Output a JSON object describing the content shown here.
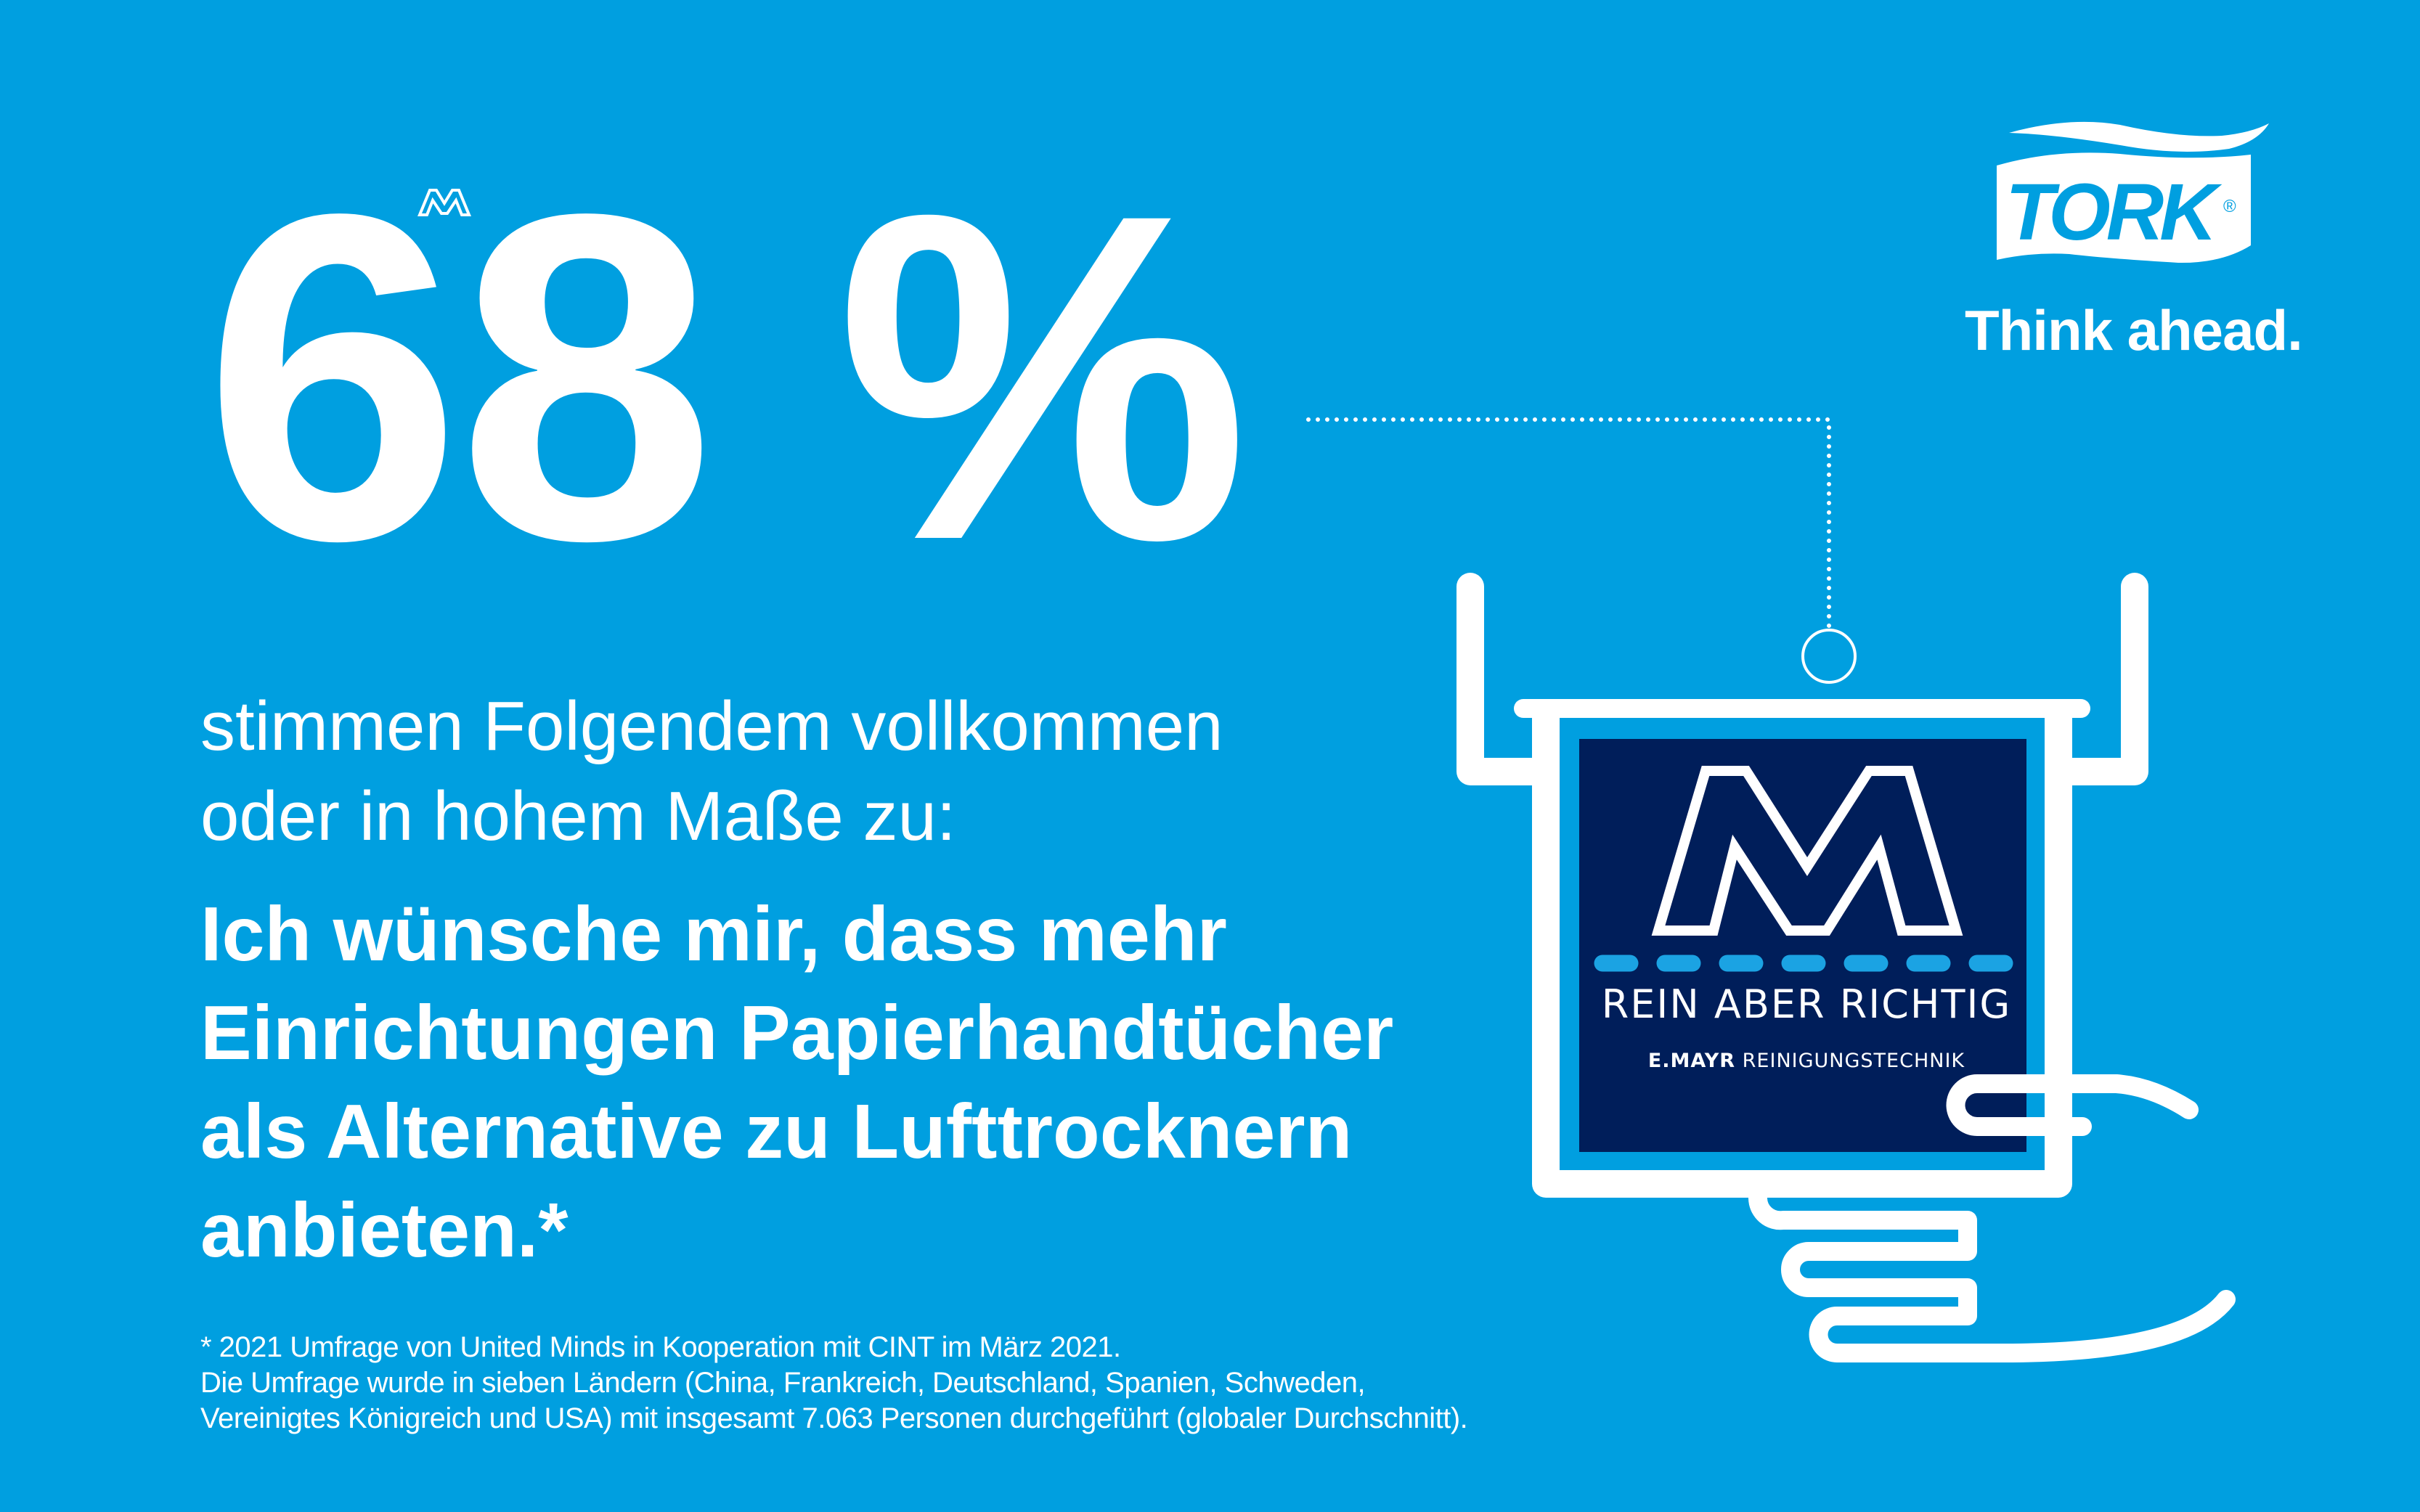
{
  "headline": {
    "value": "68 %"
  },
  "lead": [
    "stimmen Folgendem vollkommen",
    "oder in hohem Maße zu:"
  ],
  "claim": [
    "Ich wünsche mir, dass mehr",
    "Einrichtungen Papierhandtücher",
    "als Alternative zu Lufttrocknern",
    "anbieten.*"
  ],
  "footnote": [
    "* 2021 Umfrage von United Minds in Kooperation mit CINT im März 2021.",
    "Die Umfrage wurde in sieben Ländern (China, Frankreich, Deutschland, Spanien, Schweden,",
    "Vereinigtes Königreich und USA) mit insgesamt 7.063 Personen durchgeführt (globaler Durchschnitt)."
  ],
  "brand": {
    "logo_text": "TORK",
    "registered": "®",
    "tagline": "Think ahead."
  },
  "partner": {
    "slogan": "REIN ABER RICHTIG",
    "company_bold": "E.MAYR",
    "company_rest": "REINIGUNGSTECHNIK"
  },
  "colors": {
    "background": "#009FE0",
    "navy": "#001E5A",
    "white": "#FFFFFF"
  }
}
